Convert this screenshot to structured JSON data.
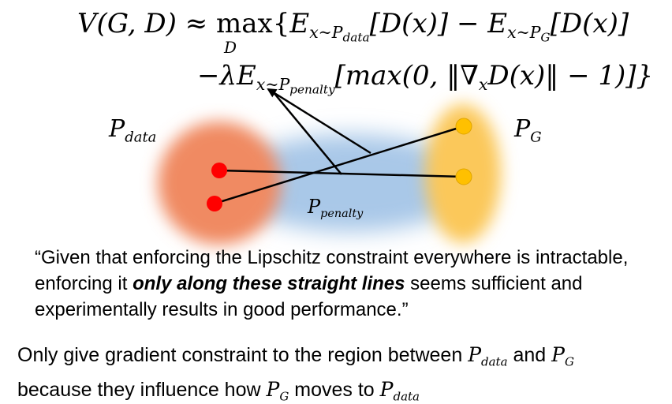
{
  "formula": {
    "lhs": "V(G, D)",
    "approx": "≈",
    "max_op": "max",
    "max_sub": "D",
    "e1": "E",
    "e1_sub_base": "x~P",
    "e1_sub_sub": "data",
    "d1": "[D(x)]",
    "minus": "−",
    "e2": "E",
    "e2_sub_base": "x~P",
    "e2_sub_sub": "G",
    "d2": "[D(x)]",
    "line2_prefix": "−λE",
    "e3_sub_base": "x~P",
    "e3_sub_sub": "penalty",
    "line2_body_a": "[max(0, ‖∇",
    "nabla_sub": "x",
    "line2_body_b": "D(x)‖ − 1)]}"
  },
  "labels": {
    "pdata_base": "P",
    "pdata_sub": "data",
    "pg_base": "P",
    "pg_sub": "G",
    "ppenalty_base": "P",
    "ppenalty_sub": "penalty"
  },
  "quote": {
    "part1": "“Given that enforcing the Lipschitz constraint everywhere is intractable, enforcing it ",
    "emphasis": "only along these straight lines",
    "part2": " seems sufficient and experimentally results in good performance.”"
  },
  "explanation": {
    "text1": "Only give gradient constraint to the region between ",
    "m1_base": "P",
    "m1_sub": "data",
    "text2": " and ",
    "m2_base": "P",
    "m2_sub": "G",
    "text3": " because they influence how ",
    "m3_base": "P",
    "m3_sub": "G",
    "text4": " moves to ",
    "m4_base": "P",
    "m4_sub": "data"
  },
  "colors": {
    "pdata_region": "#f08a62",
    "ppenalty_region": "#a9c8e8",
    "pg_region": "#fbc85a",
    "red_dot": "#ff0000",
    "yellow_dot": "#ffc000",
    "line": "#000000"
  }
}
